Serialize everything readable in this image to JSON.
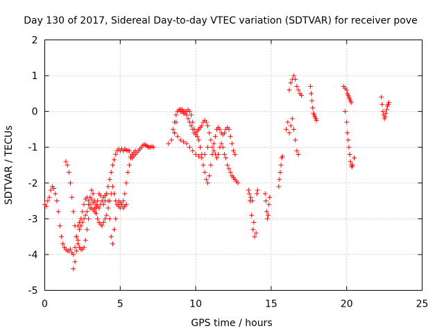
{
  "chart_data": {
    "type": "scatter",
    "title": "Day 130 of 2017, Sidereal Day-to-day VTEC variation (SDTVAR) for receiver pove",
    "xlabel": "GPS time / hours",
    "ylabel": "SDTVAR / TECUs",
    "xlim": [
      0,
      25
    ],
    "ylim": [
      -5,
      2
    ],
    "xticks": [
      0,
      5,
      10,
      15,
      20,
      25
    ],
    "yticks": [
      -5,
      -4,
      -3,
      -2,
      -1,
      0,
      1,
      2
    ],
    "grid": true,
    "legend": "none",
    "marker": "plus",
    "marker_color": "#ff0000",
    "series": [
      {
        "x": [
          0.0,
          0.1,
          0.2,
          0.3,
          0.4,
          0.5,
          0.6,
          0.7,
          0.8,
          0.9,
          1.0,
          1.1,
          1.2,
          1.3,
          1.4,
          1.5,
          1.6,
          1.7,
          1.8,
          1.9,
          2.0,
          2.1,
          2.2,
          2.3,
          2.4,
          2.5,
          2.6,
          2.7,
          2.8,
          2.9,
          3.0,
          3.1,
          3.2,
          3.3,
          3.4,
          3.5,
          3.6,
          3.7,
          3.8,
          3.9,
          4.0,
          4.1,
          4.2,
          4.3,
          4.4,
          4.5,
          4.6,
          4.7,
          4.8,
          4.9,
          5.0,
          5.1,
          5.2,
          5.3,
          5.4,
          5.5,
          5.6,
          5.7,
          5.8,
          5.9,
          6.0,
          6.1,
          6.2,
          6.3,
          6.4,
          6.5,
          6.6,
          6.7,
          6.8,
          6.9,
          7.0,
          7.1,
          7.2
        ],
        "y": [
          -2.6,
          -2.65,
          -2.5,
          -2.4,
          -2.2,
          -2.1,
          -2.15,
          -2.3,
          -2.5,
          -2.8,
          -3.2,
          -3.5,
          -3.7,
          -3.8,
          -3.85,
          -3.9,
          -3.9,
          -3.85,
          -3.95,
          -4.0,
          -3.8,
          -3.5,
          -3.2,
          -3.1,
          -3.0,
          -2.8,
          -2.6,
          -2.45,
          -2.4,
          -2.5,
          -2.6,
          -2.7,
          -2.75,
          -2.8,
          -2.7,
          -2.5,
          -2.3,
          -2.35,
          -2.5,
          -2.6,
          -2.5,
          -2.3,
          -2.1,
          -1.9,
          -1.7,
          -1.5,
          -1.35,
          -1.2,
          -1.1,
          -1.05,
          -1.1,
          -1.05,
          -1.1,
          -1.05,
          -1.08,
          -1.1,
          -1.1,
          -1.25,
          -1.3,
          -1.25,
          -1.2,
          -1.15,
          -1.1,
          -1.05,
          -1.0,
          -0.95,
          -0.92,
          -0.95,
          -0.98,
          -1.0,
          -1.0,
          -0.98,
          -1.0
        ]
      },
      {
        "x": [
          1.4,
          1.5,
          1.6,
          1.7,
          1.8,
          1.9,
          2.0,
          2.1,
          2.2,
          2.3,
          2.4,
          2.5,
          2.6,
          2.7,
          2.8,
          2.9,
          3.0,
          3.1,
          3.2,
          3.3,
          3.4,
          3.5,
          3.6,
          3.7,
          3.8,
          3.9,
          4.0,
          4.1,
          4.2,
          4.3,
          4.4,
          4.5,
          4.6,
          4.7,
          4.8,
          4.9,
          5.0,
          5.1,
          5.2,
          5.3,
          5.4,
          5.5,
          5.6,
          5.7,
          5.8,
          5.9,
          6.0
        ],
        "y": [
          -1.4,
          -1.5,
          -1.7,
          -2.0,
          -2.4,
          -2.8,
          -3.2,
          -3.5,
          -3.7,
          -3.8,
          -3.85,
          -3.85,
          -3.8,
          -3.6,
          -3.3,
          -3.0,
          -2.7,
          -2.45,
          -2.55,
          -2.7,
          -2.85,
          -3.0,
          -3.1,
          -3.15,
          -3.2,
          -3.1,
          -3.0,
          -2.9,
          -2.7,
          -2.5,
          -2.3,
          -2.1,
          -2.3,
          -2.5,
          -2.6,
          -2.65,
          -2.7,
          -2.6,
          -2.5,
          -2.3,
          -2.0,
          -1.7,
          -1.5,
          -1.3,
          -1.2,
          -1.15,
          -1.1
        ]
      },
      {
        "x": [
          1.9,
          2.0,
          2.1,
          2.2,
          2.3,
          2.4,
          2.5,
          2.6,
          2.7,
          2.8,
          2.9,
          3.0,
          3.1,
          3.2,
          3.3,
          3.4,
          3.5,
          3.6,
          3.7,
          3.8,
          3.9,
          4.0,
          4.1,
          4.2,
          4.3,
          4.4,
          4.5,
          4.6,
          4.7,
          4.8,
          4.9,
          5.0,
          5.1,
          5.2,
          5.3,
          5.4
        ],
        "y": [
          -4.4,
          -4.2,
          -3.9,
          -3.6,
          -3.3,
          -3.2,
          -3.1,
          -3.0,
          -2.9,
          -2.8,
          -2.6,
          -2.4,
          -2.2,
          -2.3,
          -2.5,
          -2.6,
          -2.65,
          -2.7,
          -2.6,
          -2.5,
          -2.4,
          -2.35,
          -2.3,
          -2.5,
          -3.0,
          -3.5,
          -3.7,
          -3.3,
          -3.0,
          -2.6,
          -2.5,
          -2.55,
          -2.6,
          -2.7,
          -2.65,
          -2.6
        ]
      },
      {
        "x": [
          8.2,
          8.4,
          8.6,
          8.7,
          8.8,
          8.9,
          9.0,
          9.1,
          9.2,
          9.3,
          9.4,
          9.5,
          9.6,
          9.7,
          9.8,
          9.9,
          10.0,
          10.1,
          10.2,
          10.3,
          10.4,
          10.5,
          10.6,
          10.7,
          10.8,
          10.9,
          11.0,
          11.1,
          11.2,
          11.3,
          11.4,
          11.5,
          11.6,
          11.7,
          11.8,
          11.9,
          12.0,
          12.1,
          12.2,
          12.3,
          12.4,
          12.5,
          12.6
        ],
        "y": [
          -0.9,
          -0.8,
          -0.6,
          -0.3,
          0.0,
          0.05,
          0.05,
          0.0,
          -0.05,
          0.0,
          -0.1,
          -0.2,
          -0.3,
          -0.4,
          -0.5,
          -0.6,
          -0.65,
          -0.7,
          -0.8,
          -1.0,
          -1.2,
          -1.5,
          -1.7,
          -1.9,
          -2.0,
          -1.8,
          -1.5,
          -1.2,
          -0.9,
          -0.7,
          -0.5,
          -0.45,
          -0.5,
          -0.6,
          -0.65,
          -0.6,
          -0.5,
          -0.45,
          -0.5,
          -0.7,
          -0.9,
          -1.1,
          -1.2
        ]
      },
      {
        "x": [
          8.5,
          8.6,
          8.7,
          8.8,
          8.9,
          9.0,
          9.1,
          9.2,
          9.3,
          9.4,
          9.5,
          9.6,
          9.7,
          9.8,
          9.9,
          10.0,
          10.1,
          10.2,
          10.3,
          10.4,
          10.5,
          10.6,
          10.7,
          10.8,
          10.9,
          11.0,
          11.1,
          11.2,
          11.3,
          11.4,
          11.5,
          11.6,
          11.7,
          11.8,
          11.9,
          12.0,
          12.1,
          12.2,
          12.3,
          12.4,
          12.5,
          12.6,
          12.7,
          12.8
        ],
        "y": [
          -0.5,
          -0.3,
          -0.1,
          0.0,
          0.05,
          0.0,
          0.05,
          0.0,
          -0.05,
          0.0,
          0.05,
          0.0,
          -0.1,
          -0.3,
          -0.5,
          -0.6,
          -0.55,
          -0.5,
          -0.45,
          -0.4,
          -0.3,
          -0.25,
          -0.3,
          -0.4,
          -0.6,
          -0.8,
          -1.0,
          -1.1,
          -1.2,
          -1.3,
          -1.2,
          -1.0,
          -0.9,
          -1.0,
          -1.2,
          -1.3,
          -1.5,
          -1.6,
          -1.7,
          -1.8,
          -1.85,
          -1.9,
          -1.95,
          -2.0
        ]
      },
      {
        "x": [
          8.6,
          8.8,
          9.0,
          9.2,
          9.4,
          9.6,
          9.8,
          10.0,
          10.2,
          10.4,
          10.6,
          10.8
        ],
        "y": [
          -0.6,
          -0.7,
          -0.8,
          -0.85,
          -0.9,
          -1.0,
          -1.1,
          -1.2,
          -1.25,
          -1.3,
          -1.2,
          -1.0
        ]
      },
      {
        "x": [
          13.5,
          13.6,
          13.7,
          13.8,
          13.9,
          13.55,
          13.65,
          13.75,
          13.85,
          14.0,
          14.05,
          14.1
        ],
        "y": [
          -2.2,
          -2.5,
          -2.9,
          -3.3,
          -3.5,
          -2.3,
          -2.4,
          -2.5,
          -3.1,
          -3.4,
          -2.3,
          -2.2
        ]
      },
      {
        "x": [
          14.6,
          14.65,
          14.7,
          14.75,
          14.8,
          14.85,
          14.9
        ],
        "y": [
          -2.3,
          -2.5,
          -2.8,
          -3.0,
          -2.9,
          -2.6,
          -2.4
        ]
      },
      {
        "x": [
          15.5,
          15.55,
          15.6,
          15.65,
          15.7,
          15.75
        ],
        "y": [
          -2.1,
          -1.9,
          -1.7,
          -1.5,
          -1.3,
          -1.25
        ]
      },
      {
        "x": [
          16.0,
          16.1,
          16.2,
          16.3,
          16.4,
          16.5,
          16.6,
          16.7,
          16.8,
          16.9,
          17.0
        ],
        "y": [
          -0.5,
          -0.3,
          0.6,
          0.8,
          0.9,
          1.0,
          0.9,
          0.7,
          0.6,
          0.5,
          0.45
        ]
      },
      {
        "x": [
          16.2,
          16.3,
          16.4,
          16.5,
          16.6,
          16.7,
          16.8
        ],
        "y": [
          -0.6,
          -0.4,
          -0.2,
          -0.5,
          -0.8,
          -1.1,
          -1.2
        ]
      },
      {
        "x": [
          17.6,
          17.65,
          17.7,
          17.75,
          17.8,
          17.85,
          17.9,
          17.95,
          18.0
        ],
        "y": [
          0.7,
          0.5,
          0.3,
          0.1,
          -0.05,
          -0.1,
          -0.15,
          -0.2,
          -0.25
        ]
      },
      {
        "x": [
          19.8,
          19.9,
          20.0,
          20.05,
          20.1,
          20.15,
          20.2,
          20.25,
          20.3
        ],
        "y": [
          0.7,
          0.65,
          0.6,
          0.5,
          0.45,
          0.4,
          0.35,
          0.3,
          0.25
        ]
      },
      {
        "x": [
          19.9,
          20.0,
          20.05,
          20.1,
          20.15,
          20.2,
          20.25,
          20.3,
          20.35,
          20.4,
          20.5
        ],
        "y": [
          0.0,
          -0.3,
          -0.6,
          -0.8,
          -1.0,
          -1.2,
          -1.4,
          -1.5,
          -1.55,
          -1.5,
          -1.3
        ]
      },
      {
        "x": [
          22.3,
          22.35,
          22.4,
          22.45,
          22.5,
          22.55,
          22.6,
          22.65,
          22.7,
          22.75,
          22.8
        ],
        "y": [
          0.4,
          0.2,
          0.0,
          -0.1,
          -0.2,
          -0.15,
          -0.05,
          0.05,
          0.15,
          0.2,
          0.25
        ]
      }
    ]
  }
}
